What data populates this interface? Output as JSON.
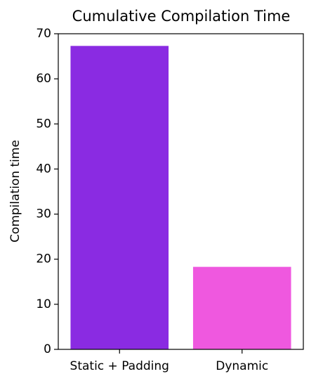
{
  "chart_data": {
    "type": "bar",
    "title": "Cumulative Compilation Time",
    "y_label": "Compilation time",
    "categories": [
      "Static + Padding",
      "Dynamic"
    ],
    "values": [
      67.3,
      18.3
    ],
    "colors": [
      "#8a2be2",
      "#ef58df"
    ],
    "ylim": [
      0,
      70
    ],
    "yticks": [
      0,
      10,
      20,
      30,
      40,
      50,
      60,
      70
    ],
    "grid": false
  }
}
